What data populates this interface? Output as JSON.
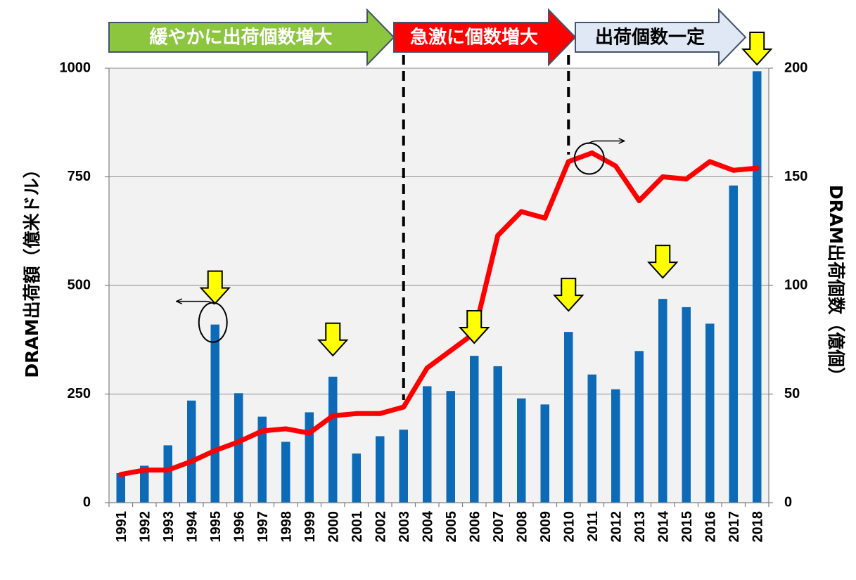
{
  "chart_data": {
    "type": "bar+line",
    "categories": [
      "1991",
      "1992",
      "1993",
      "1994",
      "1995",
      "1996",
      "1997",
      "1998",
      "1999",
      "2000",
      "2001",
      "2002",
      "2003",
      "2004",
      "2005",
      "2006",
      "2007",
      "2008",
      "2009",
      "2010",
      "2011",
      "2012",
      "2013",
      "2014",
      "2015",
      "2016",
      "2017",
      "2018"
    ],
    "series": [
      {
        "name": "DRAM出荷額",
        "type": "bar",
        "axis": "left",
        "color": "#0d6ab7",
        "values": [
          68,
          85,
          132,
          235,
          410,
          252,
          198,
          140,
          208,
          290,
          113,
          153,
          168,
          268,
          257,
          338,
          314,
          240,
          226,
          393,
          295,
          261,
          349,
          469,
          450,
          412,
          730,
          993
        ]
      },
      {
        "name": "DRAM出荷個数",
        "type": "line",
        "axis": "right",
        "color": "#ff0000",
        "values": [
          13,
          15,
          15,
          19,
          24,
          28,
          33,
          34,
          32,
          40,
          41,
          41,
          44,
          62,
          70,
          78,
          123,
          134,
          131,
          157,
          161,
          155,
          139,
          150,
          149,
          157,
          153,
          154
        ]
      }
    ],
    "y_left": {
      "label": "DRAM出荷額（億米ドル）",
      "lim": [
        0,
        1000
      ],
      "ticks": [
        "0",
        "250",
        "500",
        "750",
        "1000"
      ]
    },
    "y_right": {
      "label": "DRAM出荷個数（億個）",
      "lim": [
        0,
        200
      ],
      "ticks": [
        "0",
        "50",
        "100",
        "150",
        "200"
      ]
    },
    "grid": true,
    "phases": [
      {
        "label": "緩やかに出荷個数増大",
        "start": "1991",
        "end": "2003",
        "color": "#8cc63f",
        "text_color": "#ffffff"
      },
      {
        "label": "急激に個数増大",
        "start": "2003",
        "end": "2010",
        "color": "#ff0000",
        "text_color": "#ffffff"
      },
      {
        "label": "出荷個数一定",
        "start": "2010",
        "end": "2018",
        "color": "#dfe8f4",
        "text_color": "#000000"
      }
    ],
    "phase_dividers": [
      "2003",
      "2010"
    ],
    "highlight_arrows": [
      "1995",
      "2000",
      "2006",
      "2010",
      "2014",
      "2018"
    ],
    "arrow_color": "#ffff00",
    "axis_annotations": [
      {
        "year": "1995",
        "series": "bar",
        "points_to": "left"
      },
      {
        "year": "2011",
        "series": "line",
        "points_to": "right"
      }
    ]
  }
}
